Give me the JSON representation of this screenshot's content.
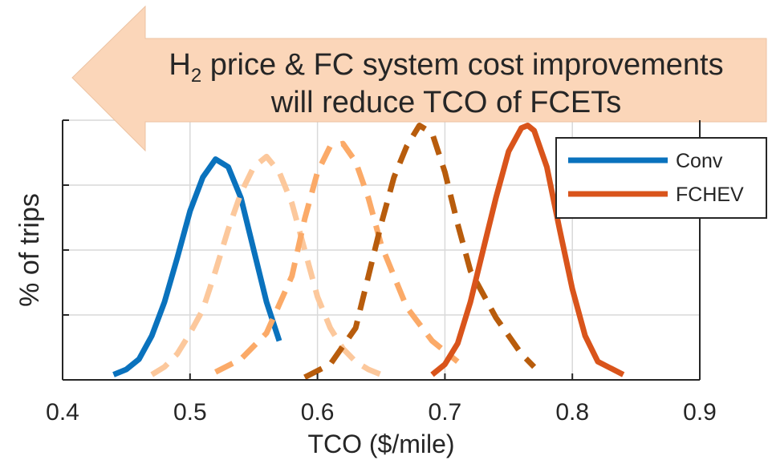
{
  "chart_data": {
    "type": "line",
    "title": "",
    "xlabel": "TCO ($/mile)",
    "ylabel": "% of trips",
    "xlim": [
      0.4,
      0.9
    ],
    "ylim": [
      0,
      100
    ],
    "x_ticks": [
      "0.4",
      "0.5",
      "0.6",
      "0.7",
      "0.8",
      "0.9"
    ],
    "y_tick_labels_shown": false,
    "grid": true,
    "legend_position": "top-right",
    "annotation": {
      "lines": [
        "H2 price & FC system cost improvements",
        "will reduce TCO of FCETs"
      ],
      "arrow_direction": "left",
      "arrow_color": "#fbd6b9"
    },
    "series": [
      {
        "name": "Conv",
        "color": "#0a72bd",
        "dashed": false,
        "in_legend": true,
        "x": [
          0.44,
          0.45,
          0.46,
          0.47,
          0.48,
          0.49,
          0.5,
          0.51,
          0.52,
          0.53,
          0.54,
          0.55,
          0.56,
          0.57
        ],
        "y": [
          2,
          4,
          8,
          17,
          30,
          47,
          65,
          78,
          85,
          82,
          70,
          50,
          30,
          15
        ]
      },
      {
        "name": "",
        "color": "#fcc89c",
        "dashed": true,
        "in_legend": false,
        "x": [
          0.47,
          0.48,
          0.49,
          0.5,
          0.51,
          0.52,
          0.53,
          0.54,
          0.55,
          0.56,
          0.57,
          0.58,
          0.59,
          0.6,
          0.61,
          0.62,
          0.63,
          0.64,
          0.65
        ],
        "y": [
          2,
          5,
          10,
          18,
          27,
          42,
          58,
          72,
          82,
          86,
          80,
          68,
          50,
          32,
          20,
          12,
          7,
          4,
          2
        ]
      },
      {
        "name": "",
        "color": "#fbaa68",
        "dashed": true,
        "in_legend": false,
        "x": [
          0.52,
          0.54,
          0.56,
          0.58,
          0.59,
          0.6,
          0.61,
          0.62,
          0.63,
          0.64,
          0.65,
          0.67,
          0.69,
          0.71
        ],
        "y": [
          3,
          8,
          18,
          40,
          62,
          80,
          90,
          91,
          84,
          70,
          52,
          28,
          15,
          7
        ]
      },
      {
        "name": "",
        "color": "#b85c0c",
        "dashed": true,
        "in_legend": false,
        "x": [
          0.59,
          0.61,
          0.63,
          0.64,
          0.65,
          0.66,
          0.67,
          0.68,
          0.69,
          0.7,
          0.71,
          0.72,
          0.74,
          0.76,
          0.77
        ],
        "y": [
          1,
          6,
          20,
          40,
          60,
          78,
          90,
          98,
          95,
          80,
          60,
          42,
          24,
          10,
          5
        ]
      },
      {
        "name": "FCHEV",
        "color": "#d9541b",
        "dashed": false,
        "in_legend": true,
        "x": [
          0.69,
          0.7,
          0.71,
          0.72,
          0.73,
          0.74,
          0.75,
          0.76,
          0.765,
          0.77,
          0.78,
          0.79,
          0.8,
          0.81,
          0.82,
          0.84
        ],
        "y": [
          2,
          6,
          14,
          30,
          50,
          70,
          88,
          97,
          98,
          96,
          82,
          58,
          35,
          17,
          7,
          2
        ]
      }
    ]
  }
}
